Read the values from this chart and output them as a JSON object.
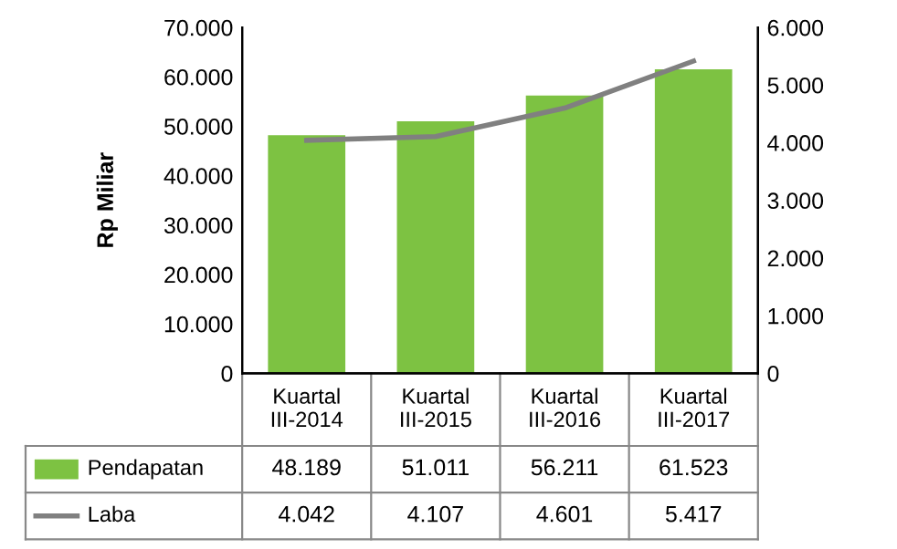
{
  "chart_data": {
    "type": "bar",
    "ylabel": "Rp Miliar",
    "categories": [
      "Kuartal III-2014",
      "Kuartal III-2015",
      "Kuartal III-2016",
      "Kuartal III-2017"
    ],
    "series": [
      {
        "name": "Pendapatan",
        "color": "#7dc242",
        "values": [
          48189,
          51011,
          56211,
          61523
        ],
        "value_labels": [
          "48.189",
          "51.011",
          "56.211",
          "61.523"
        ]
      },
      {
        "name": "Laba",
        "type": "line",
        "axis": "y2",
        "color": "#808080",
        "values": [
          4042,
          4107,
          4601,
          5417
        ],
        "value_labels": [
          "4.042",
          "4.107",
          "4.601",
          "5.417"
        ]
      }
    ],
    "ylim": [
      0,
      70000
    ],
    "yticks": [
      {
        "value": 0,
        "label": "0"
      },
      {
        "value": 10000,
        "label": "10.000"
      },
      {
        "value": 20000,
        "label": "20.000"
      },
      {
        "value": 30000,
        "label": "30.000"
      },
      {
        "value": 40000,
        "label": "40.000"
      },
      {
        "value": 50000,
        "label": "50.000"
      },
      {
        "value": 60000,
        "label": "60.000"
      },
      {
        "value": 70000,
        "label": "70.000"
      }
    ],
    "y2lim": [
      0,
      6000
    ],
    "y2ticks": [
      {
        "value": 0,
        "label": "0"
      },
      {
        "value": 1000,
        "label": "1.000"
      },
      {
        "value": 2000,
        "label": "2.000"
      },
      {
        "value": 3000,
        "label": "3.000"
      },
      {
        "value": 4000,
        "label": "4.000"
      },
      {
        "value": 5000,
        "label": "5.000"
      },
      {
        "value": 6000,
        "label": "6.000"
      }
    ],
    "legend": "bottom",
    "marker": "none",
    "line_style": "solid"
  }
}
